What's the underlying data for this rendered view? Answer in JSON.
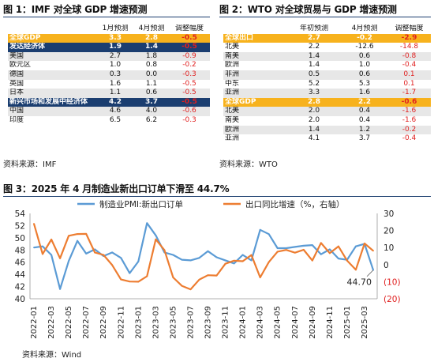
{
  "fig1": {
    "title": "图 1：IMF 对全球 GDP 增速预测",
    "headers": [
      "",
      "1月预测",
      "4月预测",
      "调整幅度"
    ],
    "rows": [
      {
        "style": "orange",
        "label": "全球GDP",
        "jan": "3.3",
        "apr": "2.8",
        "adj": "-0.5"
      },
      {
        "style": "navy",
        "label": "发达经济体",
        "jan": "1.9",
        "apr": "1.4",
        "adj": "-0.5"
      },
      {
        "style": "gray",
        "label": "美国",
        "jan": "2.7",
        "apr": "1.8",
        "adj": "-0.9"
      },
      {
        "style": "white",
        "label": "欧元区",
        "jan": "1.0",
        "apr": "0.8",
        "adj": "-0.2"
      },
      {
        "style": "gray",
        "label": "德国",
        "jan": "0.3",
        "apr": "0.0",
        "adj": "-0.3"
      },
      {
        "style": "white",
        "label": "英国",
        "jan": "1.6",
        "apr": "1.1",
        "adj": "-0.5"
      },
      {
        "style": "gray",
        "label": "日本",
        "jan": "1.1",
        "apr": "0.6",
        "adj": "-0.5"
      },
      {
        "style": "navy",
        "label": "新兴市场和发展中经济体",
        "jan": "4.2",
        "apr": "3.7",
        "adj": "-0.5"
      },
      {
        "style": "gray",
        "label": "中国",
        "jan": "4.6",
        "apr": "4.0",
        "adj": "-0.6"
      },
      {
        "style": "white",
        "label": "印度",
        "jan": "6.5",
        "apr": "6.2",
        "adj": "-0.3"
      }
    ],
    "source": "资料来源：IMF"
  },
  "fig2": {
    "title": "图 2：WTO 对全球贸易与 GDP 增速预测",
    "headers": [
      "",
      "年初预测",
      "4月预测",
      "调整幅度"
    ],
    "rows": [
      {
        "style": "orange",
        "label": "全球出口",
        "jan": "2.7",
        "apr": "-0.2",
        "adj": "-2.9"
      },
      {
        "style": "white",
        "label": "北美",
        "jan": "2.2",
        "apr": "-12.6",
        "adj": "-14.8"
      },
      {
        "style": "gray",
        "label": "南美",
        "jan": "1.4",
        "apr": "0.6",
        "adj": "-0.8"
      },
      {
        "style": "white",
        "label": "欧洲",
        "jan": "1.4",
        "apr": "1.0",
        "adj": "-0.4"
      },
      {
        "style": "gray",
        "label": "非洲",
        "jan": "0.5",
        "apr": "0.6",
        "adj": "0.1"
      },
      {
        "style": "white",
        "label": "中东",
        "jan": "5.2",
        "apr": "5.3",
        "adj": "0.1"
      },
      {
        "style": "gray",
        "label": "亚洲",
        "jan": "3.3",
        "apr": "1.6",
        "adj": "-1.7"
      },
      {
        "style": "orange",
        "label": "全球GDP",
        "jan": "2.8",
        "apr": "2.2",
        "adj": "-0.6"
      },
      {
        "style": "gray",
        "label": "北美",
        "jan": "2.0",
        "apr": "0.4",
        "adj": "-1.6"
      },
      {
        "style": "white",
        "label": "南美",
        "jan": "2.0",
        "apr": "0.4",
        "adj": "-1.6"
      },
      {
        "style": "gray",
        "label": "欧洲",
        "jan": "1.4",
        "apr": "1.2",
        "adj": "-0.2"
      },
      {
        "style": "white",
        "label": "亚洲",
        "jan": "4.1",
        "apr": "3.7",
        "adj": "-0.4"
      }
    ],
    "source": "资料来源：WTO"
  },
  "fig3": {
    "title": "图 3：2025 年 4 月制造业新出口订单下滑至 44.7%",
    "source": "资料来源：Wind"
  },
  "chart_data": {
    "type": "line",
    "x": [
      "2022-01",
      "2022-02",
      "2022-03",
      "2022-04",
      "2022-05",
      "2022-06",
      "2022-07",
      "2022-08",
      "2022-09",
      "2022-10",
      "2022-11",
      "2022-12",
      "2023-01",
      "2023-02",
      "2023-03",
      "2023-04",
      "2023-05",
      "2023-06",
      "2023-07",
      "2023-08",
      "2023-09",
      "2023-10",
      "2023-11",
      "2023-12",
      "2024-01",
      "2024-02",
      "2024-03",
      "2024-04",
      "2024-05",
      "2024-06",
      "2024-07",
      "2024-08",
      "2024-09",
      "2024-10",
      "2024-11",
      "2024-12",
      "2025-01",
      "2025-02",
      "2025-03",
      "2025-04"
    ],
    "xticks": [
      "2022-01",
      "2022-03",
      "2022-05",
      "2022-07",
      "2022-09",
      "2022-11",
      "2023-01",
      "2023-03",
      "2023-05",
      "2023-07",
      "2023-09",
      "2023-11",
      "2024-01",
      "2024-03",
      "2024-05",
      "2024-07",
      "2024-09",
      "2024-11",
      "2025-01",
      "2025-03"
    ],
    "series": [
      {
        "name": "制造业PMI:新出口订单",
        "axis": "left",
        "color": "#5b9bd5",
        "values": [
          48.4,
          48.6,
          47.2,
          41.6,
          46.2,
          49.5,
          47.4,
          48.1,
          47.0,
          47.6,
          46.7,
          44.2,
          46.1,
          52.4,
          50.4,
          47.6,
          47.2,
          46.4,
          46.3,
          46.7,
          47.8,
          46.8,
          46.3,
          45.8,
          47.2,
          46.3,
          51.3,
          50.6,
          48.3,
          48.3,
          48.5,
          48.7,
          48.8,
          47.3,
          48.1,
          46.6,
          46.4,
          48.6,
          49.0,
          44.7
        ]
      },
      {
        "name": "出口同比增速（%，右轴）",
        "axis": "right",
        "color": "#ed7d31",
        "values": [
          24.0,
          6.2,
          14.7,
          3.7,
          16.9,
          17.9,
          18.0,
          7.1,
          5.7,
          -0.3,
          -8.7,
          -9.9,
          -10.0,
          -6.8,
          14.8,
          8.5,
          -7.5,
          -12.4,
          -14.5,
          -8.8,
          -6.2,
          -6.4,
          0.5,
          2.3,
          2.0,
          5.6,
          -7.5,
          1.5,
          7.6,
          8.6,
          7.0,
          8.7,
          2.4,
          12.7,
          6.7,
          10.7,
          2.3,
          -3.0,
          12.4,
          8.1
        ]
      }
    ],
    "y_left": {
      "range": [
        40,
        54
      ],
      "ticks": [
        40,
        42,
        44,
        46,
        48,
        50,
        52,
        54
      ]
    },
    "y_right": {
      "range": [
        -20,
        30
      ],
      "ticks": [
        "(20)",
        "(10)",
        "0",
        "10",
        "20",
        "30"
      ]
    },
    "annotation": "44.70",
    "legend_position": "top"
  }
}
